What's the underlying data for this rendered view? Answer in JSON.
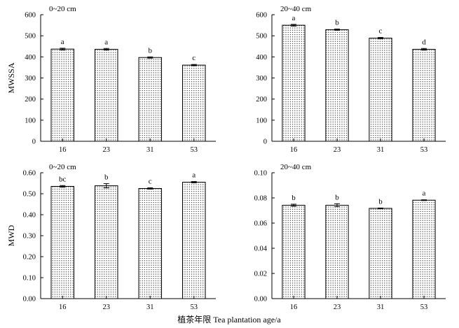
{
  "figure": {
    "xlabel": "植茶年限 Tea plantation age/a"
  },
  "chart_data": [
    {
      "type": "bar",
      "panel": "top-left",
      "title": "0~20 cm",
      "ylabel": "MWSSA",
      "xlabel": "",
      "categories": [
        "16",
        "23",
        "31",
        "53"
      ],
      "values": [
        437,
        436,
        397,
        361
      ],
      "errors": [
        4,
        4,
        3,
        3
      ],
      "significance": [
        "a",
        "a",
        "b",
        "c"
      ],
      "ylim": [
        0,
        600
      ],
      "yticks": [
        0,
        100,
        200,
        300,
        400,
        500,
        600
      ],
      "ytick_labels": [
        "0",
        "100",
        "200",
        "300",
        "400",
        "500",
        "600"
      ]
    },
    {
      "type": "bar",
      "panel": "top-right",
      "title": "20~40 cm",
      "ylabel": "",
      "xlabel": "",
      "categories": [
        "16",
        "23",
        "31",
        "53"
      ],
      "values": [
        550,
        529,
        489,
        436
      ],
      "errors": [
        4,
        3,
        3,
        4
      ],
      "significance": [
        "a",
        "b",
        "c",
        "d"
      ],
      "ylim": [
        0,
        600
      ],
      "yticks": [
        0,
        100,
        200,
        300,
        400,
        500,
        600
      ],
      "ytick_labels": [
        "0",
        "100",
        "200",
        "300",
        "400",
        "500",
        "600"
      ]
    },
    {
      "type": "bar",
      "panel": "bottom-left",
      "title": "0~20 cm",
      "ylabel": "MWD",
      "xlabel": "",
      "categories": [
        "16",
        "23",
        "31",
        "53"
      ],
      "values": [
        0.535,
        0.538,
        0.525,
        0.555
      ],
      "errors": [
        0.004,
        0.01,
        0.003,
        0.003
      ],
      "significance": [
        "bc",
        "b",
        "c",
        "a"
      ],
      "ylim": [
        0,
        0.6
      ],
      "yticks": [
        0,
        0.1,
        0.2,
        0.3,
        0.4,
        0.5,
        0.6
      ],
      "ytick_labels": [
        "0.00",
        "0.10",
        "0.20",
        "0.30",
        "0.40",
        "0.50",
        "0.60"
      ]
    },
    {
      "type": "bar",
      "panel": "bottom-right",
      "title": "20~40 cm",
      "ylabel": "",
      "xlabel": "",
      "categories": [
        "16",
        "23",
        "31",
        "53"
      ],
      "values": [
        0.0742,
        0.0742,
        0.0717,
        0.0782
      ],
      "errors": [
        0.0008,
        0.0012,
        0.0003,
        0.0003
      ],
      "significance": [
        "b",
        "b",
        "b",
        "a"
      ],
      "ylim": [
        0,
        0.1
      ],
      "yticks": [
        0,
        0.02,
        0.04,
        0.06,
        0.08,
        0.1
      ],
      "ytick_labels": [
        "0.00",
        "0.02",
        "0.04",
        "0.06",
        "0.08",
        "0.10"
      ]
    }
  ]
}
